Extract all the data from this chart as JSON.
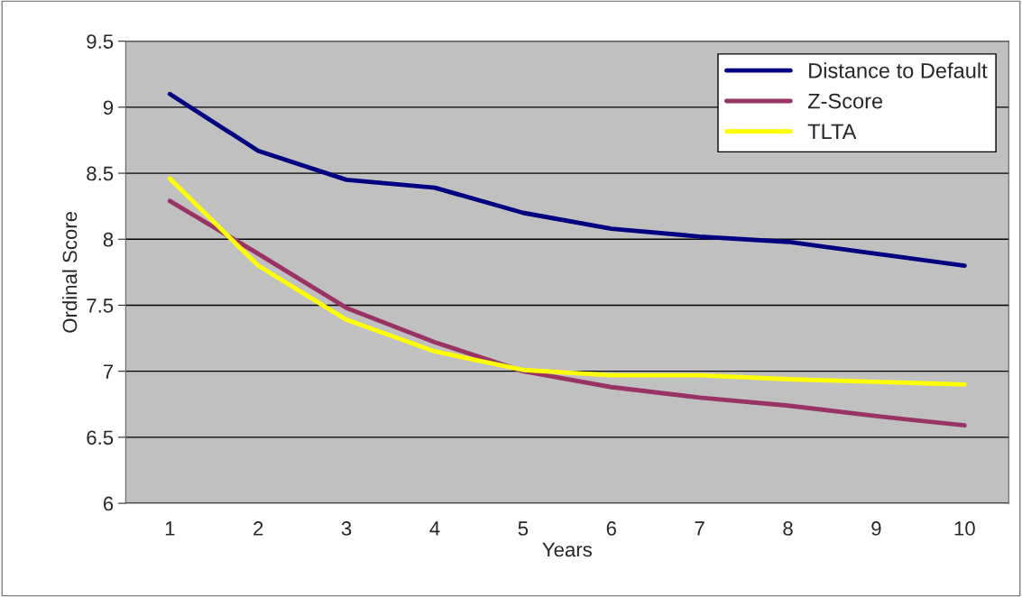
{
  "chart_data": {
    "type": "line",
    "xlabel": "Years",
    "ylabel": "Ordinal Score",
    "categories": [
      "1",
      "2",
      "3",
      "4",
      "5",
      "6",
      "7",
      "8",
      "9",
      "10"
    ],
    "series": [
      {
        "name": "Distance to Default",
        "color": "#000080",
        "values": [
          9.1,
          8.67,
          8.45,
          8.39,
          8.2,
          8.08,
          8.02,
          7.98,
          7.89,
          7.8
        ]
      },
      {
        "name": "Z-Score",
        "color": "#993366",
        "values": [
          8.29,
          7.89,
          7.48,
          7.22,
          7.0,
          6.88,
          6.8,
          6.74,
          6.66,
          6.59
        ]
      },
      {
        "name": "TLTA",
        "color": "#ffff00",
        "values": [
          8.46,
          7.8,
          7.39,
          7.15,
          7.01,
          6.97,
          6.97,
          6.94,
          6.92,
          6.9
        ]
      }
    ],
    "ylim": [
      6,
      9.5
    ],
    "yticks": [
      6,
      6.5,
      7,
      7.5,
      8,
      8.5,
      9,
      9.5
    ],
    "grid": "y",
    "legend": "top right",
    "marker": "none",
    "line_style": "solid"
  }
}
